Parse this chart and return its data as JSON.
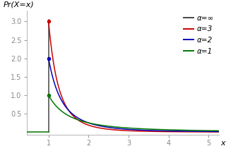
{
  "ylabel": "Pr(X=x)",
  "xlabel": "x",
  "xlim": [
    0.45,
    5.25
  ],
  "ylim": [
    -0.08,
    3.3
  ],
  "x_ticks": [
    1,
    2,
    3,
    4,
    5
  ],
  "y_ticks": [
    0.5,
    1.0,
    1.5,
    2.0,
    2.5,
    3.0
  ],
  "xmin": 1.0,
  "series": [
    {
      "alpha": null,
      "label": "α=∞",
      "color": "#444444",
      "lw": 1.1
    },
    {
      "alpha": 3,
      "label": "α=3",
      "color": "#cc0000",
      "lw": 1.1
    },
    {
      "alpha": 2,
      "label": "α=2",
      "color": "#0000bb",
      "lw": 1.1
    },
    {
      "alpha": 1,
      "label": "α=1",
      "color": "#007700",
      "lw": 1.1
    }
  ],
  "background_color": "#ffffff",
  "legend_fontsize": 7.5,
  "tick_fontsize": 7,
  "ylabel_fontsize": 8,
  "spine_color": "#aaaaaa",
  "tick_color": "#888888"
}
